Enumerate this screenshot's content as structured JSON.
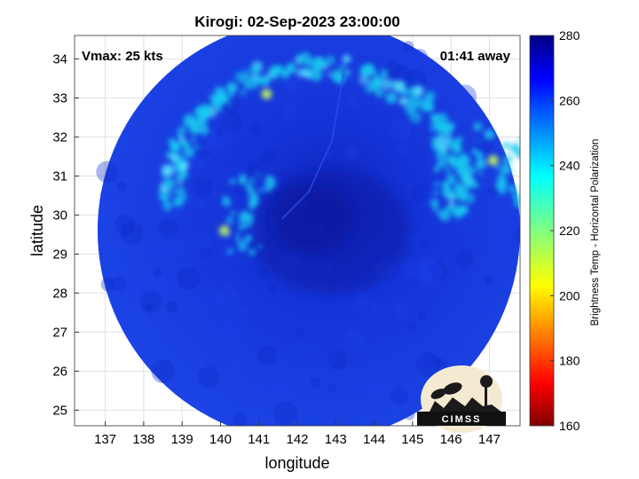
{
  "title": "Kirogi: 02-Sep-2023 23:00:00",
  "vmax_label": "Vmax: 25 kts",
  "time_label": "01:41 away",
  "xlabel": "longitude",
  "ylabel": "latitude",
  "logo_text": "CIMSS",
  "map": {
    "xlim": [
      136.2,
      147.8
    ],
    "ylim": [
      24.6,
      34.6
    ],
    "xticks": [
      137,
      138,
      139,
      140,
      141,
      142,
      143,
      144,
      145,
      146,
      147
    ],
    "yticks": [
      25,
      26,
      27,
      28,
      29,
      30,
      31,
      32,
      33,
      34
    ],
    "grid": true,
    "swath_center": [
      142.3,
      29.6
    ],
    "swath_radius_deg": 5.5,
    "storm_center": [
      142.4,
      29.9
    ]
  },
  "colorbar": {
    "label": "Brightness Temp - Horizontal Polarization",
    "range": [
      160,
      280
    ],
    "ticks": [
      160,
      180,
      200,
      220,
      240,
      260,
      280
    ],
    "colormap": "jet"
  },
  "colors": {
    "swath_base": "#1535e0",
    "rainband": "#19c8f0",
    "warm_spot": "#b8f060"
  }
}
